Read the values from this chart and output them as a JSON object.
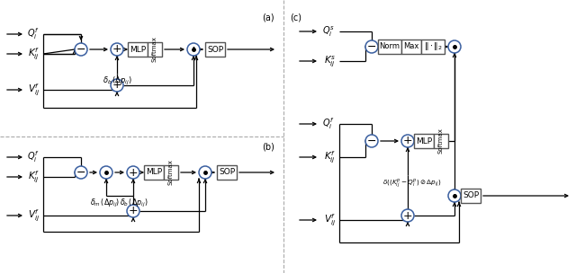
{
  "bg_color": "#ffffff",
  "line_color": "#000000",
  "circle_stroke": "#3a5fa0",
  "dashed_color": "#aaaaaa",
  "label_a": "(a)",
  "label_b": "(b)",
  "label_c": "(c)",
  "r": 7
}
